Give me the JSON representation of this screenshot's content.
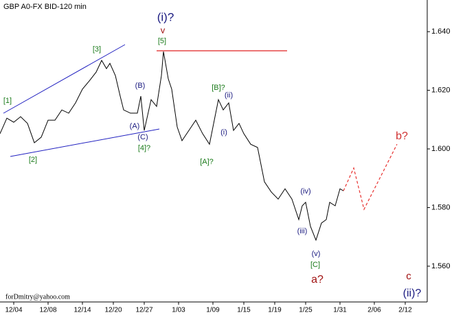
{
  "chart_data": {
    "type": "line",
    "title": "GBP A0-FX BID-120 min",
    "footer": "forDmitry@yahoo.com",
    "xlim": [
      0,
      124
    ],
    "xticks": [
      {
        "value": 4,
        "label": "12/04"
      },
      {
        "value": 14,
        "label": "12/08"
      },
      {
        "value": 24,
        "label": "12/14"
      },
      {
        "value": 33,
        "label": "12/20"
      },
      {
        "value": 42,
        "label": "12/27"
      },
      {
        "value": 52,
        "label": "1/03"
      },
      {
        "value": 62,
        "label": "1/09"
      },
      {
        "value": 71,
        "label": "1/15"
      },
      {
        "value": 80,
        "label": "1/19"
      },
      {
        "value": 89,
        "label": "1/25"
      },
      {
        "value": 99,
        "label": "1/31"
      },
      {
        "value": 109,
        "label": "2/06"
      },
      {
        "value": 118,
        "label": "2/12"
      }
    ],
    "ylim": [
      1.5478,
      1.6508
    ],
    "yticks": [
      {
        "value": 1.56,
        "label": "1.560"
      },
      {
        "value": 1.58,
        "label": "1.580"
      },
      {
        "value": 1.6,
        "label": "1.600"
      },
      {
        "value": 1.62,
        "label": "1.620"
      },
      {
        "value": 1.64,
        "label": "1.640"
      }
    ],
    "series": [
      {
        "color": "#000000",
        "dashed": false,
        "x": [
          0,
          2,
          4,
          6,
          8,
          10,
          12,
          14,
          16,
          18,
          20,
          22,
          24,
          26,
          28,
          29.6,
          31,
          32,
          33.6,
          35,
          36,
          38,
          40,
          41,
          42,
          44,
          45.6,
          47,
          47.6,
          49,
          50,
          51.6,
          53,
          55,
          57,
          59,
          61,
          62.4,
          63.6,
          65,
          66.6,
          68,
          69.6,
          71,
          73,
          75,
          77,
          79,
          81,
          83,
          85,
          87,
          88,
          89,
          90.4,
          92,
          93.6,
          95,
          96,
          97.6,
          99,
          100
        ],
        "values": [
          1.6052,
          1.6105,
          1.6091,
          1.611,
          1.6087,
          1.6021,
          1.604,
          1.6098,
          1.6098,
          1.6133,
          1.6122,
          1.6157,
          1.6204,
          1.6232,
          1.6262,
          1.6302,
          1.6274,
          1.6292,
          1.625,
          1.618,
          1.6133,
          1.6122,
          1.6122,
          1.618,
          1.6063,
          1.6168,
          1.6145,
          1.625,
          1.6332,
          1.6239,
          1.6204,
          1.6075,
          1.6028,
          1.6063,
          1.6098,
          1.6052,
          1.6016,
          1.6098,
          1.6168,
          1.6133,
          1.6157,
          1.6063,
          1.6087,
          1.6052,
          1.6016,
          1.6005,
          1.5888,
          1.5853,
          1.5829,
          1.5864,
          1.5829,
          1.5759,
          1.5806,
          1.5818,
          1.5736,
          1.5689,
          1.5747,
          1.5759,
          1.5818,
          1.5806,
          1.5864,
          1.5857
        ]
      },
      {
        "color": "#e8312f",
        "dashed": true,
        "x": [
          100,
          103,
          106,
          115.6
        ],
        "values": [
          1.5857,
          1.5935,
          1.5794,
          1.6016
        ]
      }
    ],
    "annotations": [
      {
        "text": "[1]",
        "color": "#1a7a1a"
      },
      {
        "text": "[2]",
        "color": "#1a7a1a"
      },
      {
        "text": "[3]",
        "color": "#1a7a1a"
      },
      {
        "text": "[4]?",
        "color": "#1a7a1a"
      },
      {
        "text": "[5]",
        "color": "#1a7a1a"
      },
      {
        "text": "(A)",
        "color": "#1a1a80"
      },
      {
        "text": "(B)",
        "color": "#1a1a80"
      },
      {
        "text": "(C)",
        "color": "#1a1a80"
      },
      {
        "text": "(i)?",
        "color": "#1a1a80"
      },
      {
        "text": "v",
        "color": "#a01010"
      },
      {
        "text": "[B]?",
        "color": "#1a7a1a"
      },
      {
        "text": "(ii)",
        "color": "#1a1a80"
      },
      {
        "text": "(i)",
        "color": "#1a1a80"
      },
      {
        "text": "[A]?",
        "color": "#1a7a1a"
      },
      {
        "text": "(iv)",
        "color": "#1a1a80"
      },
      {
        "text": "(iii)",
        "color": "#1a1a80"
      },
      {
        "text": "(v)",
        "color": "#1a1a80"
      },
      {
        "text": "[C]",
        "color": "#1a7a1a"
      },
      {
        "text": "a?",
        "color": "#a01010"
      },
      {
        "text": "b?",
        "color": "#d03030"
      },
      {
        "text": "c",
        "color": "#a01010"
      },
      {
        "text": "(ii)?",
        "color": "#1a1a80"
      }
    ]
  }
}
